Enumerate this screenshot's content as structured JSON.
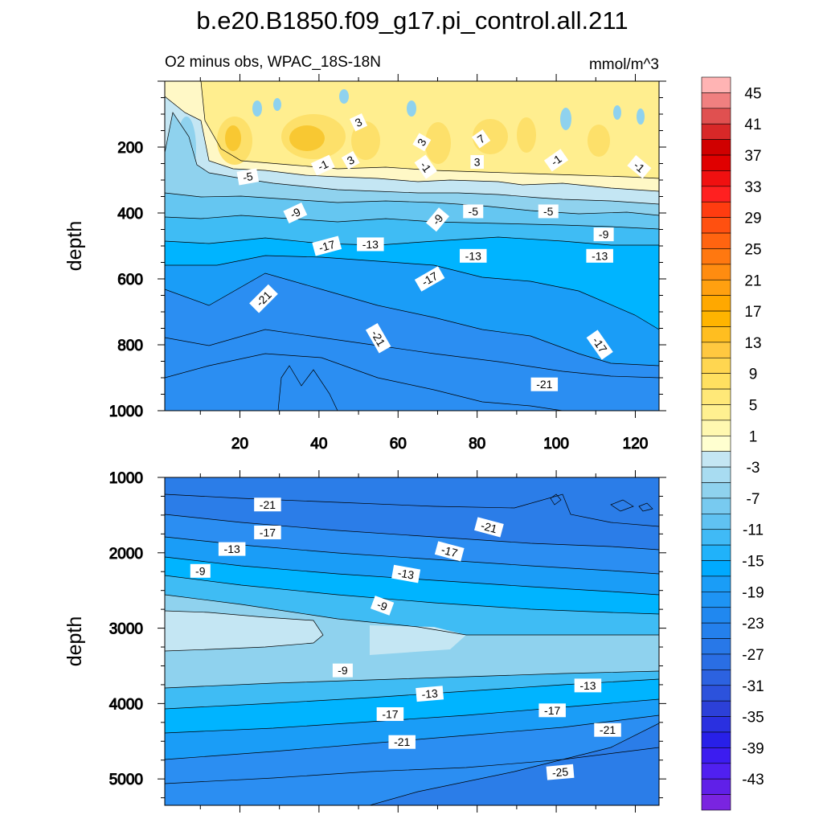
{
  "title": "b.e20.B1850.f09_g17.pi_control.all.211",
  "chart_data": {
    "type": "contour",
    "title": "b.e20.B1850.f09_g17.pi_control.all.211",
    "subtitle_left": "O2 minus obs, WPAC_18S-18N",
    "subtitle_right": "mmol/m^3",
    "units": "mmol/m^3",
    "colorbar": {
      "levels_min": -45,
      "levels_max": 45,
      "step": 2,
      "tick_labels": [
        "45",
        "41",
        "37",
        "33",
        "29",
        "25",
        "21",
        "17",
        "13",
        "9",
        "5",
        "1",
        "-3",
        "-7",
        "-11",
        "-15",
        "-19",
        "-23",
        "-27",
        "-31",
        "-35",
        "-39",
        "-43"
      ]
    },
    "panels": [
      {
        "name": "upper",
        "ylabel": "depth",
        "xlim": [
          1,
          126
        ],
        "ylim": [
          0,
          1000
        ],
        "x_tick_labels": [
          "20",
          "40",
          "60",
          "80",
          "100",
          "120"
        ],
        "y_tick_labels": [
          "200",
          "400",
          "600",
          "800",
          "1000"
        ],
        "contour_labels": [
          {
            "text": "3",
            "x": 50,
            "y": 125,
            "rot": -25
          },
          {
            "text": "3",
            "x": 66,
            "y": 185,
            "rot": -60
          },
          {
            "text": "7",
            "x": 81,
            "y": 175,
            "rot": -35
          },
          {
            "text": "-1",
            "x": 41,
            "y": 255,
            "rot": -25
          },
          {
            "text": "3",
            "x": 48,
            "y": 240,
            "rot": -30
          },
          {
            "text": "-1",
            "x": 67,
            "y": 260,
            "rot": 55
          },
          {
            "text": "3",
            "x": 80,
            "y": 245,
            "rot": 0
          },
          {
            "text": "-1",
            "x": 100,
            "y": 240,
            "rot": -35
          },
          {
            "text": "-1",
            "x": 121,
            "y": 260,
            "rot": 40
          },
          {
            "text": "-5",
            "x": 22,
            "y": 290,
            "rot": -10
          },
          {
            "text": "-9",
            "x": 34,
            "y": 400,
            "rot": -25
          },
          {
            "text": "-9",
            "x": 70,
            "y": 420,
            "rot": -50
          },
          {
            "text": "-5",
            "x": 79,
            "y": 395,
            "rot": 0
          },
          {
            "text": "-5",
            "x": 98,
            "y": 395,
            "rot": 0
          },
          {
            "text": "-9",
            "x": 112,
            "y": 465,
            "rot": 0
          },
          {
            "text": "-17",
            "x": 42,
            "y": 500,
            "rot": -15
          },
          {
            "text": "-13",
            "x": 53,
            "y": 495,
            "rot": 0
          },
          {
            "text": "-13",
            "x": 79,
            "y": 530,
            "rot": 0
          },
          {
            "text": "-13",
            "x": 111,
            "y": 530,
            "rot": 0
          },
          {
            "text": "-17",
            "x": 68,
            "y": 600,
            "rot": -30
          },
          {
            "text": "-21",
            "x": 26,
            "y": 660,
            "rot": -45
          },
          {
            "text": "-21",
            "x": 55,
            "y": 780,
            "rot": 60
          },
          {
            "text": "-17",
            "x": 111,
            "y": 800,
            "rot": 55
          },
          {
            "text": "-21",
            "x": 97,
            "y": 920,
            "rot": 0
          }
        ]
      },
      {
        "name": "lower",
        "ylabel": "depth",
        "xlim": [
          1,
          126
        ],
        "ylim": [
          1000,
          5350
        ],
        "x_tick_labels": [],
        "y_tick_labels": [
          "1000",
          "2000",
          "3000",
          "4000",
          "5000"
        ],
        "contour_labels": [
          {
            "text": "-21",
            "x": 27,
            "y": 1360,
            "rot": 0
          },
          {
            "text": "-21",
            "x": 83,
            "y": 1660,
            "rot": 15
          },
          {
            "text": "-17",
            "x": 27,
            "y": 1730,
            "rot": 0
          },
          {
            "text": "-17",
            "x": 73,
            "y": 1980,
            "rot": 15
          },
          {
            "text": "-13",
            "x": 18,
            "y": 1950,
            "rot": 0
          },
          {
            "text": "-13",
            "x": 62,
            "y": 2280,
            "rot": 10
          },
          {
            "text": "-9",
            "x": 10,
            "y": 2240,
            "rot": 0
          },
          {
            "text": "-9",
            "x": 56,
            "y": 2700,
            "rot": 20
          },
          {
            "text": "-9",
            "x": 46,
            "y": 3560,
            "rot": 0
          },
          {
            "text": "-13",
            "x": 68,
            "y": 3870,
            "rot": -5
          },
          {
            "text": "-13",
            "x": 108,
            "y": 3760,
            "rot": 0
          },
          {
            "text": "-17",
            "x": 58,
            "y": 4140,
            "rot": 0
          },
          {
            "text": "-17",
            "x": 99,
            "y": 4090,
            "rot": 0
          },
          {
            "text": "-21",
            "x": 61,
            "y": 4510,
            "rot": 0
          },
          {
            "text": "-21",
            "x": 113,
            "y": 4350,
            "rot": 0
          },
          {
            "text": "-25",
            "x": 101,
            "y": 4910,
            "rot": -5
          }
        ]
      }
    ]
  }
}
